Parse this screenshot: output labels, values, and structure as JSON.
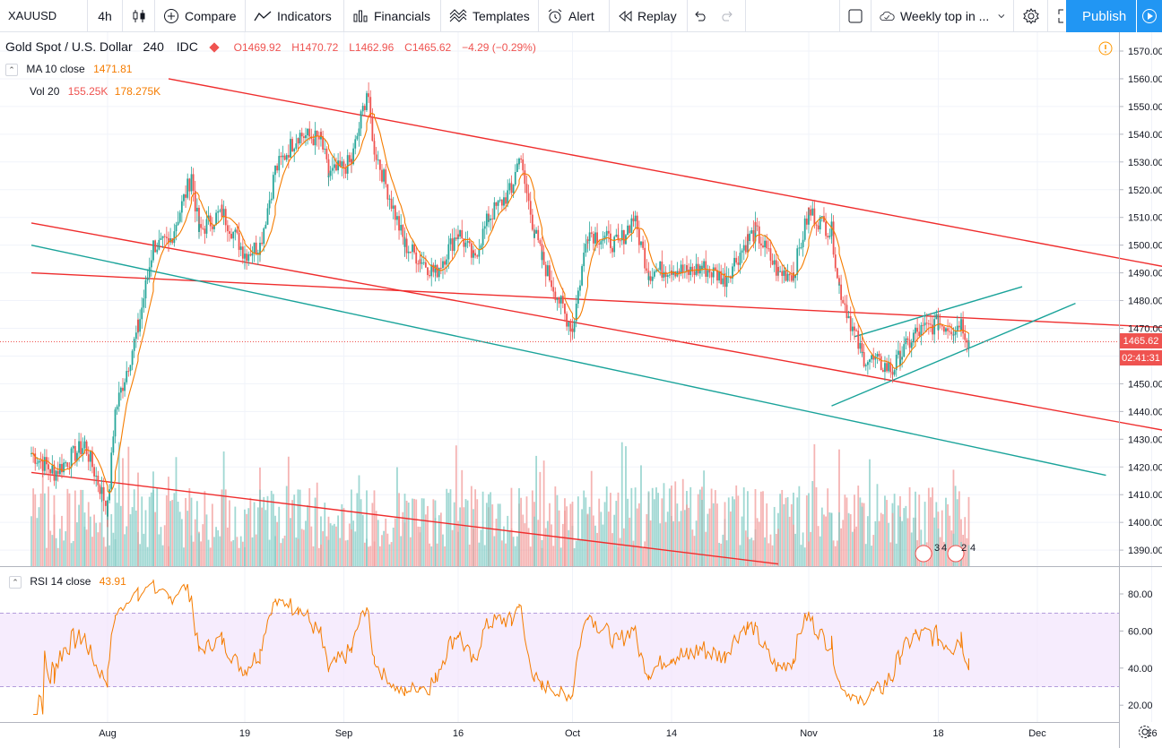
{
  "toolbar": {
    "symbol": "XAUUSD",
    "interval": "4h",
    "compare": "Compare",
    "indicators": "Indicators",
    "financials": "Financials",
    "templates": "Templates",
    "alert": "Alert",
    "replay": "Replay",
    "layout_name": "Weekly top in ...",
    "publish": "Publish"
  },
  "legend": {
    "title": "Gold Spot / U.S. Dollar",
    "interval": "240",
    "source": "IDC",
    "open": "O1469.92",
    "high": "H1470.72",
    "low": "L1462.96",
    "close": "C1465.62",
    "change": "−4.29 (−0.29%)"
  },
  "indicators": {
    "ma": {
      "label": "MA 10 close",
      "value": "1471.81"
    },
    "vol": {
      "label": "Vol 20",
      "value1": "155.25K",
      "value2": "178.275K"
    },
    "rsi": {
      "label": "RSI 14 close",
      "value": "43.91"
    }
  },
  "price_axis": {
    "labels": [
      "1570.00",
      "1560.00",
      "1550.00",
      "1540.00",
      "1530.00",
      "1520.00",
      "1510.00",
      "1500.00",
      "1490.00",
      "1480.00",
      "1470.00",
      "1460.00",
      "1450.00",
      "1440.00",
      "1430.00",
      "1420.00",
      "1410.00",
      "1400.00",
      "1390.00"
    ],
    "current_price": "1465.62",
    "countdown": "02:41:31"
  },
  "rsi_axis": {
    "labels": [
      "80.00",
      "60.00",
      "40.00",
      "20.00"
    ]
  },
  "time_axis": {
    "labels": [
      "Aug",
      "19",
      "Sep",
      "16",
      "Oct",
      "14",
      "Nov",
      "18",
      "Dec",
      "16"
    ]
  },
  "events": {
    "a": "3",
    "b": "4",
    "c": "2",
    "d": "4"
  },
  "colors": {
    "up": "#26a69a",
    "down": "#ef5350",
    "ma": "#f57c00",
    "rsi_band": "#9c27b0",
    "accent": "#2196f3"
  },
  "chart_data": {
    "type": "candlestick",
    "symbol": "XAUUSD",
    "price_range": [
      1385,
      1575
    ],
    "close_path": [
      [
        "Jul 22",
        1425
      ],
      [
        "Jul 25",
        1418
      ],
      [
        "Jul 29",
        1428
      ],
      [
        "Aug 1",
        1405
      ],
      [
        "Aug 2",
        1440
      ],
      [
        "Aug 5",
        1470
      ],
      [
        "Aug 7",
        1500
      ],
      [
        "Aug 9",
        1500
      ],
      [
        "Aug 12",
        1525
      ],
      [
        "Aug 13",
        1505
      ],
      [
        "Aug 16",
        1512
      ],
      [
        "Aug 19",
        1497
      ],
      [
        "Aug 21",
        1500
      ],
      [
        "Aug 23",
        1527
      ],
      [
        "Aug 26",
        1540
      ],
      [
        "Aug 29",
        1538
      ],
      [
        "Aug 30",
        1525
      ],
      [
        "Sep 2",
        1530
      ],
      [
        "Sep 4",
        1555
      ],
      [
        "Sep 5",
        1535
      ],
      [
        "Sep 9",
        1500
      ],
      [
        "Sep 11",
        1495
      ],
      [
        "Sep 13",
        1490
      ],
      [
        "Sep 16",
        1505
      ],
      [
        "Sep 18",
        1495
      ],
      [
        "Sep 20",
        1510
      ],
      [
        "Sep 23",
        1520
      ],
      [
        "Sep 24",
        1532
      ],
      [
        "Sep 26",
        1505
      ],
      [
        "Sep 27",
        1495
      ],
      [
        "Sep 30",
        1475
      ],
      [
        "Oct 1",
        1470
      ],
      [
        "Oct 3",
        1505
      ],
      [
        "Oct 7",
        1500
      ],
      [
        "Oct 9",
        1510
      ],
      [
        "Oct 11",
        1490
      ],
      [
        "Oct 14",
        1492
      ],
      [
        "Oct 16",
        1490
      ],
      [
        "Oct 18",
        1492
      ],
      [
        "Oct 21",
        1488
      ],
      [
        "Oct 24",
        1502
      ],
      [
        "Oct 25",
        1505
      ],
      [
        "Oct 28",
        1490
      ],
      [
        "Oct 30",
        1490
      ],
      [
        "Nov 1",
        1512
      ],
      [
        "Nov 4",
        1505
      ],
      [
        "Nov 5",
        1485
      ],
      [
        "Nov 7",
        1468
      ],
      [
        "Nov 8",
        1460
      ],
      [
        "Nov 12",
        1455
      ],
      [
        "Nov 13",
        1460
      ],
      [
        "Nov 15",
        1468
      ],
      [
        "Nov 18",
        1472
      ],
      [
        "Nov 20",
        1470
      ],
      [
        "Nov 21",
        1472
      ],
      [
        "Nov 22",
        1465.62
      ]
    ],
    "ma": {
      "period": 10,
      "last": 1471.81
    },
    "rsi": {
      "period": 14,
      "last": 43.91,
      "bands": [
        30,
        70
      ],
      "range": [
        15,
        90
      ]
    },
    "trendlines": [
      {
        "color": "red",
        "from": [
          "Aug 9",
          1560
        ],
        "to": [
          "Dec 20",
          1491
        ]
      },
      {
        "color": "red",
        "from": [
          "Jul 22",
          1508
        ],
        "to": [
          "Dec 20",
          1432
        ]
      },
      {
        "color": "red",
        "from": [
          "Jul 22",
          1490
        ],
        "to": [
          "Dec 20",
          1470
        ]
      },
      {
        "color": "teal",
        "from": [
          "Jul 22",
          1500
        ],
        "to": [
          "Dec 10",
          1417
        ]
      },
      {
        "color": "red",
        "from": [
          "Jul 22",
          1418
        ],
        "to": [
          "Oct 28",
          1385
        ]
      },
      {
        "color": "teal",
        "from": [
          "Nov 7",
          1467
        ],
        "to": [
          "Nov 29",
          1485
        ]
      },
      {
        "color": "teal",
        "from": [
          "Nov 4",
          1442
        ],
        "to": [
          "Dec 6",
          1479
        ]
      }
    ]
  }
}
